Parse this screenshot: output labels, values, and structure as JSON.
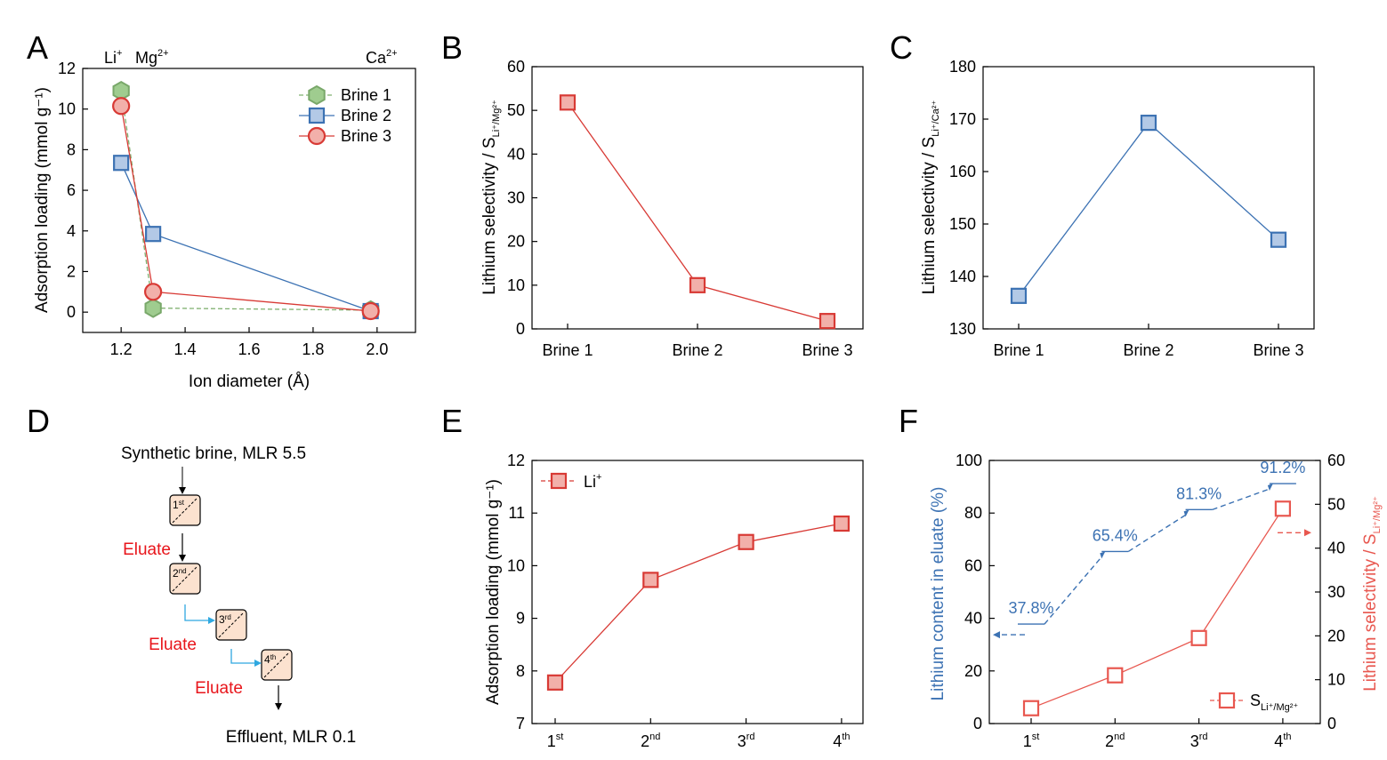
{
  "panels": {
    "a": "A",
    "b": "B",
    "c": "C",
    "d": "D",
    "e": "E",
    "f": "F"
  },
  "chart_data": [
    {
      "type": "line",
      "panel": "A",
      "xlabel": "Ion diameter (Å)",
      "ylabel": "Adsorption loading (mmol g⁻¹)",
      "xlim": [
        1.08,
        2.12
      ],
      "ylim": [
        -1,
        12
      ],
      "xticks": [
        "1.2",
        "1.4",
        "1.6",
        "1.8",
        "2.0"
      ],
      "yticks": [
        "0",
        "2",
        "4",
        "6",
        "8",
        "10",
        "12"
      ],
      "top_labels": {
        "li": "Li",
        "li_sup": "+",
        "mg": "Mg",
        "mg_sup": "2+",
        "ca": "Ca",
        "ca_sup": "2+"
      },
      "legend_position": "top-right",
      "series": [
        {
          "name": "Brine 1",
          "marker": "hexagon",
          "fill": "#9fcc8f",
          "stroke": "#79a86a",
          "line": "#7fb06f",
          "dashed": true,
          "x": [
            1.2,
            1.3,
            1.98
          ],
          "y": [
            10.9,
            0.2,
            0.1
          ]
        },
        {
          "name": "Brine 2",
          "marker": "square",
          "fill": "#b3c9e6",
          "stroke": "#3c72b3",
          "line": "#3c72b3",
          "dashed": false,
          "x": [
            1.2,
            1.3,
            1.98
          ],
          "y": [
            7.35,
            3.85,
            0.05
          ]
        },
        {
          "name": "Brine 3",
          "marker": "circle",
          "fill": "#f2b0aa",
          "stroke": "#d83a35",
          "line": "#d83a35",
          "dashed": false,
          "x": [
            1.2,
            1.3,
            1.98
          ],
          "y": [
            10.15,
            1.0,
            0.05
          ]
        }
      ]
    },
    {
      "type": "line",
      "panel": "B",
      "categories": [
        "Brine 1",
        "Brine 2",
        "Brine 3"
      ],
      "ylabel": "Lithium selectivity / S",
      "ylabel_sub": "Li⁺/Mg²⁺",
      "ylim": [
        0,
        60
      ],
      "yticks": [
        "0",
        "10",
        "20",
        "30",
        "40",
        "50",
        "60"
      ],
      "series": [
        {
          "values": [
            51.8,
            10.0,
            1.8
          ],
          "fill": "#f2b0aa",
          "stroke": "#d83a35"
        }
      ]
    },
    {
      "type": "line",
      "panel": "C",
      "categories": [
        "Brine 1",
        "Brine 2",
        "Brine 3"
      ],
      "ylabel": "Lithium selectivity / S",
      "ylabel_sub": "Li⁺/Ca²⁺",
      "ylim": [
        130,
        180
      ],
      "yticks": [
        "130",
        "140",
        "150",
        "160",
        "170",
        "180"
      ],
      "series": [
        {
          "values": [
            136.3,
            169.3,
            147.0
          ],
          "fill": "#b3c9e6",
          "stroke": "#3c72b3"
        }
      ]
    },
    {
      "type": "line",
      "panel": "E",
      "categories": [
        "1st",
        "2nd",
        "3rd",
        "4th"
      ],
      "cat_base": [
        "1",
        "2",
        "3",
        "4"
      ],
      "cat_sup": [
        "st",
        "nd",
        "rd",
        "th"
      ],
      "ylabel": "Adsorption loading (mmol g⁻¹)",
      "ylim": [
        7,
        12
      ],
      "yticks": [
        "7",
        "8",
        "9",
        "10",
        "11",
        "12"
      ],
      "legend": "Li",
      "legend_sup": "+",
      "legend_position": "top-left",
      "series": [
        {
          "name": "Li+",
          "values": [
            7.78,
            9.73,
            10.45,
            10.8
          ],
          "fill": "#f2b0aa",
          "stroke": "#d83a35"
        }
      ]
    },
    {
      "type": "line",
      "panel": "F",
      "categories": [
        "1st",
        "2nd",
        "3rd",
        "4th"
      ],
      "cat_base": [
        "1",
        "2",
        "3",
        "4"
      ],
      "cat_sup": [
        "st",
        "nd",
        "rd",
        "th"
      ],
      "ylabel_left": "Lithium content in eluate (%)",
      "ylabel_right": "Lithium selectivity / S",
      "ylabel_right_sub": "Li⁺/Mg²⁺",
      "ylim_left": [
        0,
        100
      ],
      "ylim_right": [
        0,
        60
      ],
      "yticks_left": [
        "0",
        "20",
        "40",
        "60",
        "80",
        "100"
      ],
      "yticks_right": [
        "0",
        "10",
        "20",
        "30",
        "40",
        "50",
        "60"
      ],
      "legend": "S",
      "legend_sub": "Li⁺/Mg²⁺",
      "legend_position": "bottom-right",
      "series": [
        {
          "name": "Lithium content in eluate",
          "axis": "left",
          "style": "step-annotated",
          "color": "#3c72b3",
          "values": [
            37.8,
            65.4,
            81.3,
            91.2
          ],
          "labels": [
            "37.8%",
            "65.4%",
            "81.3%",
            "91.2%"
          ]
        },
        {
          "name": "S Li+/Mg2+",
          "axis": "right",
          "marker": "square-open",
          "color": "#e8574f",
          "values": [
            3.5,
            11.0,
            19.5,
            49.0
          ]
        }
      ]
    }
  ],
  "diagram": {
    "source": "Synthetic brine, MLR 5.5",
    "effluent": "Effluent, MLR 0.1",
    "eluate_label": "Eluate",
    "stage_base": [
      "1",
      "2",
      "3",
      "4"
    ],
    "stage_sup": [
      "st",
      "nd",
      "rd",
      "th"
    ]
  }
}
